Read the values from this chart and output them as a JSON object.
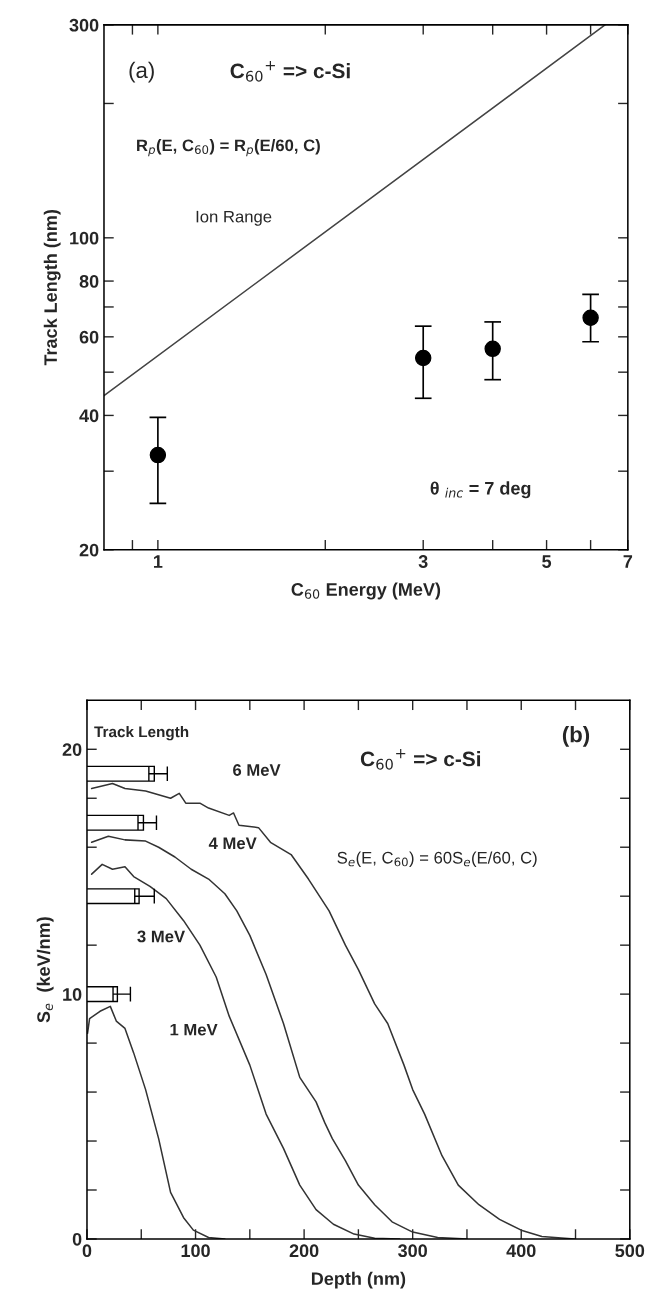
{
  "chart_data": [
    {
      "type": "scatter",
      "xlabel": "C$_{60}$ Energy (MeV)",
      "ylabel": "Track Length (nm)",
      "log": "xy",
      "xlim": [
        0.8,
        7
      ],
      "xticks": [
        {
          "value": 0.9,
          "label": null
        },
        1,
        {
          "value": 2,
          "label": null
        },
        3,
        {
          "value": 4,
          "label": null
        },
        5,
        {
          "value": 6,
          "label": null
        },
        7
      ],
      "ylim": [
        20,
        300
      ],
      "yticks": [
        20,
        {
          "value": 30,
          "label": null
        },
        40,
        {
          "value": 50,
          "label": null
        },
        60,
        {
          "value": 70,
          "label": null
        },
        80,
        100,
        {
          "value": 200,
          "label": null
        },
        300
      ],
      "grid": false,
      "annotations": [
        "(a)",
        "C$_{60}$$^{+}$ => c-Si",
        "R$_{p}$(E, C$_{60}$) = R$_{p}$(E/60, C)",
        "Ion Range",
        "θ $_{inc}$ = 7 deg"
      ],
      "series": [
        {
          "color": "#000000",
          "marker": "circle",
          "x": [
            1,
            3,
            4,
            6
          ],
          "values": [
            32.6,
            53.8,
            56.4,
            66.2
          ],
          "errors": [
            [
              25.4,
              39.6
            ],
            [
              43.7,
              63.4
            ],
            [
              48.1,
              64.8
            ],
            [
              58.5,
              74.7
            ]
          ]
        },
        {
          "type": "line",
          "color": "#444444",
          "x": [
            0.8,
            6.37
          ],
          "values": [
            44.3,
            300
          ]
        }
      ]
    },
    {
      "type": "line",
      "xlabel": "Depth (nm)",
      "ylabel": "S$_{e}$  (keV/nm)",
      "xlim": [
        0,
        500
      ],
      "xticks": [
        0,
        {
          "value": 50,
          "label": null
        },
        100,
        {
          "value": 150,
          "label": null
        },
        200,
        {
          "value": 250,
          "label": null
        },
        300,
        {
          "value": 350,
          "label": null
        },
        400,
        {
          "value": 450,
          "label": null
        },
        500
      ],
      "ylim": [
        0,
        22
      ],
      "yticks": [
        0,
        {
          "value": 2,
          "label": null
        },
        {
          "value": 4,
          "label": null
        },
        {
          "value": 6,
          "label": null
        },
        {
          "value": 8,
          "label": null
        },
        10,
        {
          "value": 12,
          "label": null
        },
        {
          "value": 14,
          "label": null
        },
        {
          "value": 16,
          "label": null
        },
        {
          "value": 18,
          "label": null
        },
        20
      ],
      "grid": false,
      "annotations": [
        "Track Length",
        "(b)",
        "C$_{60}$$^{+}$ => c-Si",
        "S$_{e}$(E, C$_{60}$) = 60S$_{e}$(E/60, C)",
        "6 MeV",
        "4 MeV",
        "3 MeV",
        "1 MeV"
      ],
      "series": [
        {
          "color": "#333333",
          "x": [
            4.3,
            23.5,
            35,
            54,
            77,
            85,
            91,
            104,
            112,
            131,
            135,
            140,
            158,
            169,
            188,
            204,
            223,
            238,
            250,
            265,
            277,
            292,
            300,
            311,
            327,
            342,
            361,
            380,
            400,
            419,
            449
          ],
          "values": [
            18.4,
            18.6,
            18.4,
            18.3,
            18.0,
            18.2,
            17.8,
            17.8,
            17.6,
            17.3,
            17.4,
            16.9,
            16.8,
            16.2,
            15.7,
            14.7,
            13.4,
            12.0,
            11.0,
            9.6,
            8.8,
            7.1,
            6.1,
            5.1,
            3.4,
            2.2,
            1.4,
            0.8,
            0.36,
            0.1,
            0
          ]
        },
        {
          "color": "#333333",
          "x": [
            4.3,
            19.7,
            35,
            54,
            66,
            81,
            96,
            112,
            127,
            138,
            150,
            165,
            181,
            196,
            211,
            219,
            226,
            238,
            250,
            265,
            281,
            300,
            323,
            350
          ],
          "values": [
            16.2,
            16.45,
            16.3,
            16.25,
            16.0,
            15.6,
            15.1,
            14.7,
            14.1,
            13.4,
            12.4,
            10.8,
            8.8,
            6.6,
            5.6,
            4.75,
            4.1,
            3.2,
            2.2,
            1.4,
            0.7,
            0.28,
            0.06,
            0
          ]
        },
        {
          "color": "#333333",
          "x": [
            4.3,
            14,
            23.5,
            35,
            43,
            58,
            73,
            89,
            104,
            119,
            131,
            150,
            165,
            181,
            196,
            211,
            227,
            246,
            265,
            288
          ],
          "values": [
            14.9,
            15.3,
            15.1,
            15.2,
            14.8,
            14.4,
            13.9,
            13.0,
            12.0,
            10.7,
            9.1,
            7.1,
            5.1,
            3.7,
            2.2,
            1.2,
            0.6,
            0.2,
            0.03,
            0
          ]
        },
        {
          "color": "#333333",
          "x": [
            0.5,
            2.4,
            12,
            21.5,
            27,
            35,
            43,
            54,
            66,
            77,
            89,
            98,
            112,
            127
          ],
          "values": [
            8.4,
            9.0,
            9.3,
            9.5,
            8.9,
            8.6,
            7.6,
            6.1,
            4.1,
            1.9,
            0.87,
            0.36,
            0.06,
            0
          ]
        }
      ]
    },
    {
      "type": "bar",
      "orientation": "horizontal",
      "xlim": [
        0,
        500
      ],
      "tick_labels": false,
      "color": "#ffffff",
      "categories": [
        null,
        null,
        null,
        null,
        null,
        null,
        null,
        null,
        null,
        null,
        null,
        null,
        null,
        null,
        null,
        null,
        null,
        null,
        null,
        null,
        null,
        null,
        null
      ],
      "values": [
        null,
        null,
        null,
        62,
        null,
        52,
        null,
        null,
        48,
        null,
        null,
        null,
        28,
        null,
        null,
        null,
        null,
        null,
        null,
        null,
        null,
        null,
        null
      ],
      "errors": [
        null,
        null,
        null,
        [
          57,
          74
        ],
        null,
        [
          47,
          64
        ],
        null,
        null,
        [
          44,
          62
        ],
        null,
        null,
        null,
        [
          24,
          40
        ],
        null,
        null,
        null,
        null,
        null,
        null,
        null,
        null,
        null,
        null
      ]
    }
  ]
}
